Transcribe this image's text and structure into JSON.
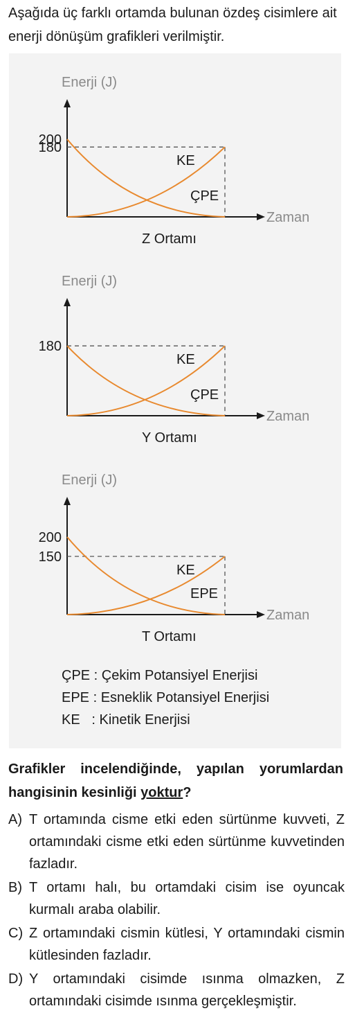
{
  "intro_text": "Aşağıda üç farklı ortamda bulunan özdeş cisimlere ait enerji dönüşüm grafikleri verilmiştir.",
  "chart_data": [
    {
      "type": "line",
      "caption": "Z Ortamı",
      "ylabel": "Enerji (J)",
      "xlabel": "Zaman",
      "yticks": [
        200,
        180
      ],
      "ylim": [
        0,
        200
      ],
      "x": [
        0,
        1
      ],
      "series": [
        {
          "name": "KE",
          "start": 0,
          "end": 180
        },
        {
          "name": "ÇPE",
          "start": 200,
          "end": 0
        }
      ],
      "dashed_reference": 180,
      "colors": {
        "curve": "#e8892e",
        "axis": "#1a1a1a",
        "dash": "#555555"
      }
    },
    {
      "type": "line",
      "caption": "Y Ortamı",
      "ylabel": "Enerji (J)",
      "xlabel": "Zaman",
      "yticks": [
        180
      ],
      "ylim": [
        0,
        180
      ],
      "x": [
        0,
        1
      ],
      "series": [
        {
          "name": "KE",
          "start": 0,
          "end": 180
        },
        {
          "name": "ÇPE",
          "start": 180,
          "end": 0
        }
      ],
      "dashed_reference": 180,
      "colors": {
        "curve": "#e8892e",
        "axis": "#1a1a1a",
        "dash": "#555555"
      }
    },
    {
      "type": "line",
      "caption": "T Ortamı",
      "ylabel": "Enerji (J)",
      "xlabel": "Zaman",
      "yticks": [
        200,
        150
      ],
      "ylim": [
        0,
        200
      ],
      "x": [
        0,
        1
      ],
      "series": [
        {
          "name": "KE",
          "start": 0,
          "end": 150
        },
        {
          "name": "EPE",
          "start": 200,
          "end": 0
        }
      ],
      "dashed_reference": 150,
      "colors": {
        "curve": "#e8892e",
        "axis": "#1a1a1a",
        "dash": "#555555"
      }
    }
  ],
  "legend": [
    {
      "abbr": "ÇPE",
      "sep": " : ",
      "text": "Çekim Potansiyel Enerjisi"
    },
    {
      "abbr": "EPE",
      "sep": " : ",
      "text": "Esneklik Potansiyel Enerjisi"
    },
    {
      "abbr": "KE",
      "sep": "   : ",
      "text": "Kinetik Enerjisi"
    }
  ],
  "question": {
    "before": "Grafikler incelendiğinde, yapılan yorumlardan hangisinin kesinliği ",
    "underlined": "yoktur",
    "after": "?"
  },
  "options": [
    {
      "letter": "A)",
      "text": "T ortamında cisme etki eden sürtünme kuvveti, Z ortamındaki cisme etki eden sürtünme kuvvetinden fazladır."
    },
    {
      "letter": "B)",
      "text": "T ortamı halı, bu ortamdaki cisim ise oyuncak kurmalı araba olabilir."
    },
    {
      "letter": "C)",
      "text": "Z ortamındaki cismin kütlesi, Y ortamındaki cismin kütlesinden fazladır."
    },
    {
      "letter": "D)",
      "text": "Y ortamındaki cisimde ısınma olmazken, Z ortamındaki cisimde ısınma gerçekleşmiştir."
    }
  ]
}
